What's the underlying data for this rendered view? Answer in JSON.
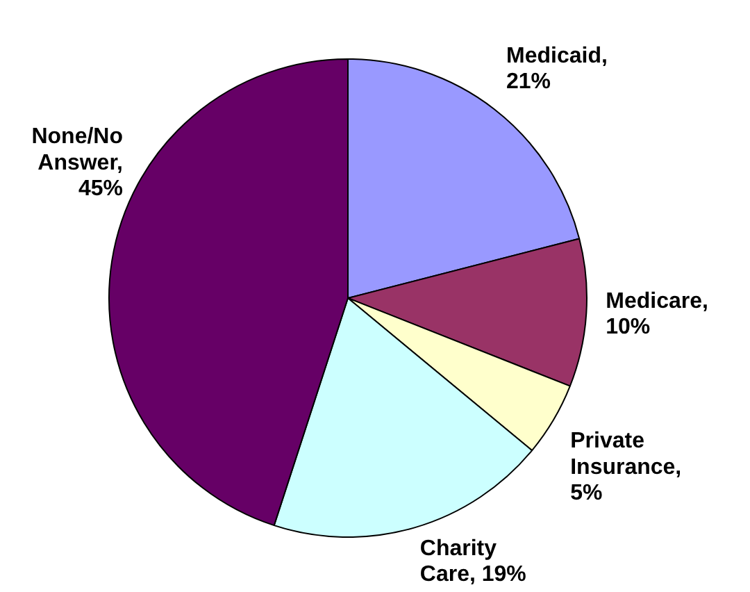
{
  "chart_data": {
    "type": "pie",
    "categories": [
      "Medicaid",
      "Medicare",
      "Private Insurance",
      "Charity Care",
      "None/No Answer"
    ],
    "values": [
      21,
      10,
      5,
      19,
      45
    ],
    "value_labels": [
      ", 21%",
      ", 10%",
      ", 5%",
      ", 19%",
      ", 45%"
    ],
    "colors": [
      "#9999ff",
      "#993366",
      "#ffffcc",
      "#ccffff",
      "#660066"
    ]
  }
}
